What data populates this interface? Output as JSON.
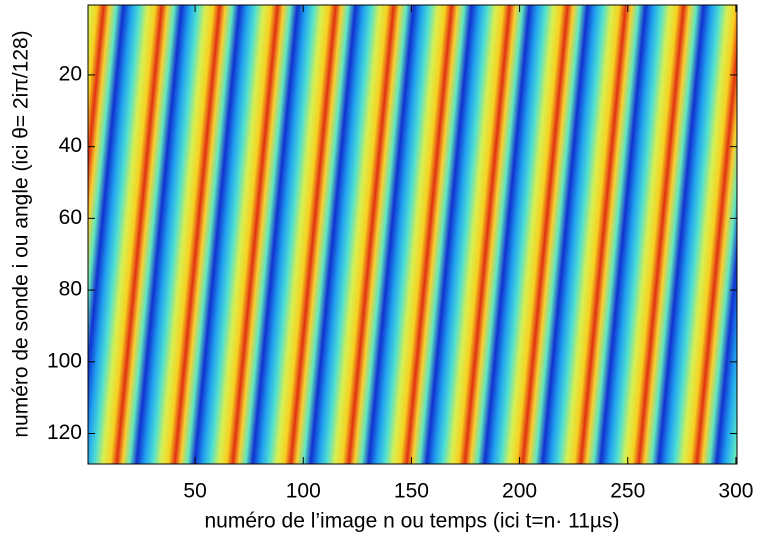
{
  "chart_data": {
    "type": "heatmap",
    "colormap": "jet",
    "xlabel": "numéro de l’image n ou temps (ici t=n· 11µs)",
    "ylabel": "numéro de sonde i ou angle (ici θ= 2iπ/128)",
    "xlim": [
      0.5,
      300.5
    ],
    "ylim": [
      0.5,
      128.5
    ],
    "y_reversed": true,
    "xticks": [
      50,
      100,
      150,
      200,
      250,
      300
    ],
    "yticks": [
      20,
      40,
      60,
      80,
      100,
      120
    ]
  }
}
